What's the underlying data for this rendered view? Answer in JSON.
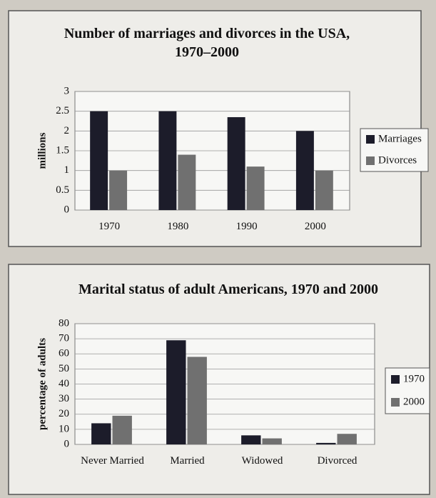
{
  "chart_data": [
    {
      "type": "bar",
      "title": "Number of marriages and divorces in the USA, 1970–2000",
      "ylabel": "millions",
      "categories": [
        "1970",
        "1980",
        "1990",
        "2000"
      ],
      "series": [
        {
          "name": "Marriages",
          "color": "#1c1c2a",
          "values": [
            2.5,
            2.5,
            2.35,
            2
          ]
        },
        {
          "name": "Divorces",
          "color": "#707070",
          "values": [
            1,
            1.4,
            1.1,
            1
          ]
        }
      ],
      "ylim": [
        0,
        3
      ],
      "yticks": [
        0,
        0.5,
        1,
        1.5,
        2,
        2.5,
        3
      ],
      "grid": true,
      "legend": "right"
    },
    {
      "type": "bar",
      "title": "Marital status of adult Americans, 1970 and 2000",
      "ylabel": "percentage of adults",
      "categories": [
        "Never Married",
        "Married",
        "Widowed",
        "Divorced"
      ],
      "series": [
        {
          "name": "1970",
          "color": "#1c1c2a",
          "values": [
            14,
            69,
            6,
            1
          ]
        },
        {
          "name": "2000",
          "color": "#707070",
          "values": [
            19,
            58,
            4,
            7
          ]
        }
      ],
      "ylim": [
        0,
        80
      ],
      "yticks": [
        0,
        10,
        20,
        30,
        40,
        50,
        60,
        70,
        80
      ],
      "grid": true,
      "legend": "right"
    }
  ]
}
